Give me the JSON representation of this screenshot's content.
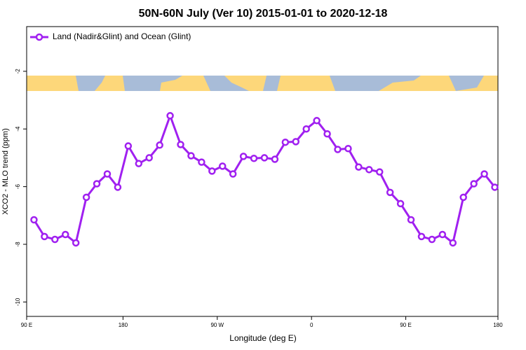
{
  "chart_data": {
    "type": "line",
    "title": "50N-60N July (Ver 10)   2015-01-01 to 2020-12-18",
    "x_label": "Longitude (deg E)",
    "y_label": "XCO2 - MLO trend (ppm)",
    "x": [
      95,
      105,
      115,
      125,
      135,
      145,
      155,
      165,
      175,
      185,
      195,
      205,
      215,
      225,
      235,
      245,
      255,
      265,
      275,
      285,
      295,
      305,
      315,
      325,
      335,
      345,
      355,
      365,
      375,
      385,
      395,
      405,
      415,
      425,
      435,
      445,
      455,
      465,
      475,
      485,
      495,
      505,
      515,
      525,
      535
    ],
    "series": [
      {
        "name": "Land (Nadir&Glint) and Ocean (Glint)",
        "color": "#a020f0",
        "values": [
          -7.15,
          -7.73,
          -7.83,
          -7.66,
          -7.95,
          -6.37,
          -5.9,
          -5.56,
          -6.02,
          -4.59,
          -5.2,
          -5.0,
          -4.56,
          -3.54,
          -4.54,
          -4.93,
          -5.15,
          -5.46,
          -5.29,
          -5.56,
          -4.95,
          -5.02,
          -5.0,
          -5.05,
          -4.46,
          -4.44,
          -4.0,
          -3.71,
          -4.17,
          -4.71,
          -4.68,
          -5.32,
          -5.41,
          -5.49,
          -6.2,
          -6.59,
          -7.15,
          -7.73,
          -7.83,
          -7.66,
          -7.95,
          -6.37,
          -5.9,
          -5.56,
          -6.02
        ]
      }
    ],
    "xlim": [
      88,
      538
    ],
    "xticks": [
      {
        "value": 88,
        "label": "90 E"
      },
      {
        "value": 180,
        "label": "180"
      },
      {
        "value": 270,
        "label": "90 W"
      },
      {
        "value": 360,
        "label": "0"
      },
      {
        "value": 450,
        "label": "90 E"
      },
      {
        "value": 538,
        "label": "180"
      }
    ],
    "ylim": [
      -10.5,
      -0.45
    ],
    "yticks": [
      -2,
      -4,
      -6,
      -8,
      -10
    ],
    "legend": "top-left"
  }
}
